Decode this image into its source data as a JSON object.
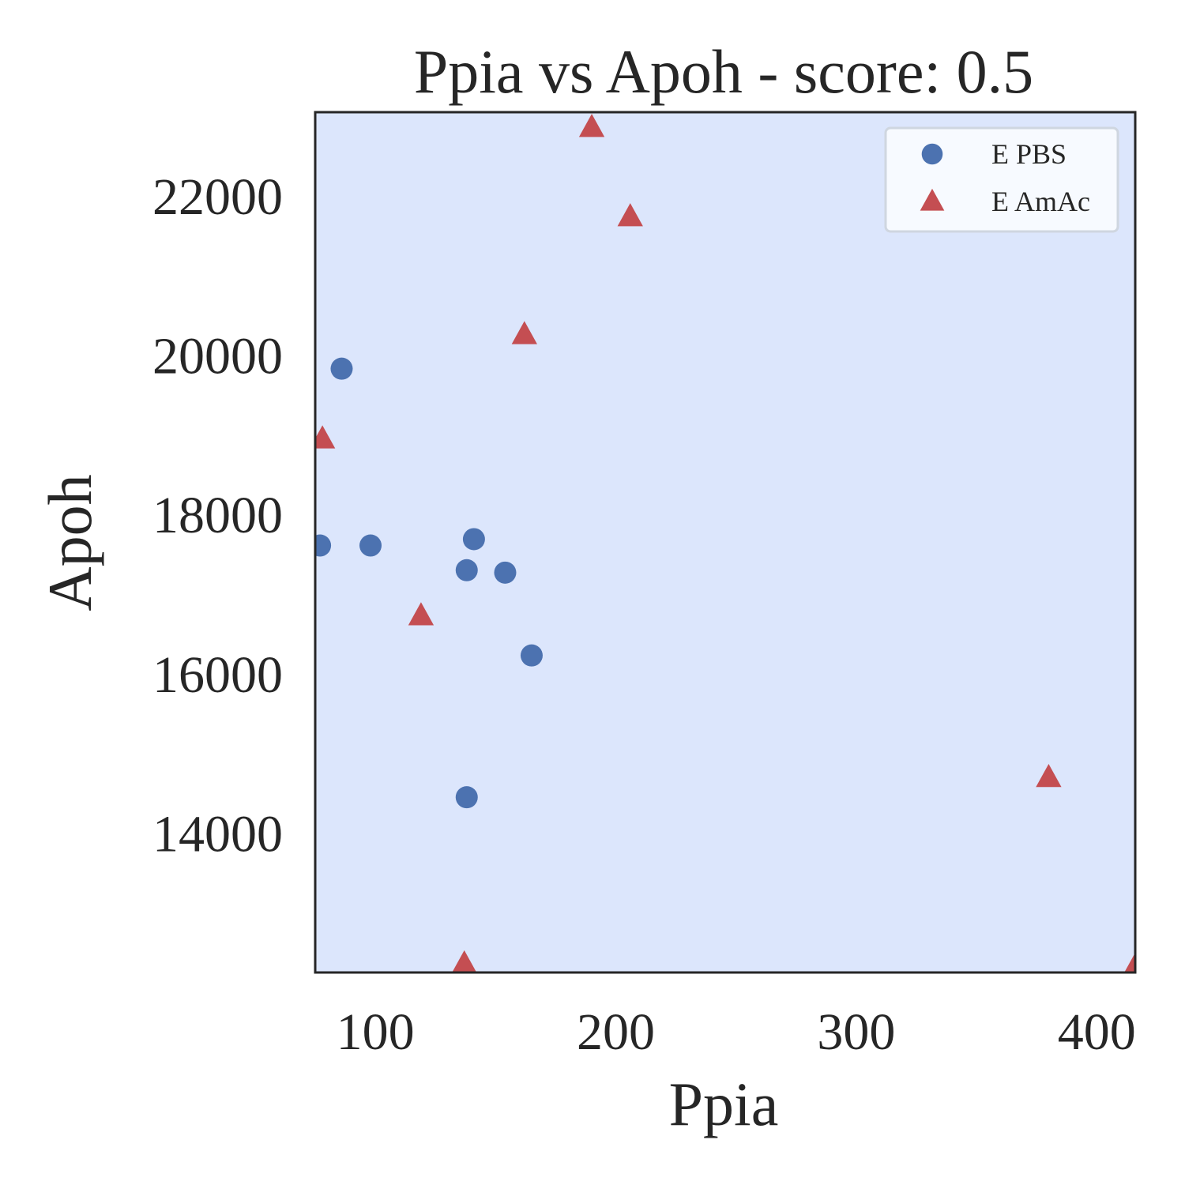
{
  "chart_data": {
    "type": "scatter",
    "title": "Ppia vs Apoh - score: 0.5",
    "xlabel": "Ppia",
    "ylabel": "Apoh",
    "xlim": [
      75,
      416
    ],
    "ylim": [
      12250,
      23050
    ],
    "xticks": [
      100,
      200,
      300,
      400
    ],
    "yticks": [
      14000,
      16000,
      18000,
      20000,
      22000
    ],
    "grid": false,
    "legend_position": "top-right",
    "background_color": "#dce6fc",
    "series": [
      {
        "name": "E PBS",
        "marker": "circle",
        "color": "#4c72b0",
        "points": [
          [
            77,
            17610
          ],
          [
            86,
            19830
          ],
          [
            98,
            17610
          ],
          [
            138,
            17300
          ],
          [
            141,
            17690
          ],
          [
            154,
            17270
          ],
          [
            165,
            16230
          ],
          [
            138,
            14450
          ]
        ]
      },
      {
        "name": "E AmAc",
        "marker": "triangle",
        "color": "#c44e52",
        "points": [
          [
            78,
            18950
          ],
          [
            190,
            22860
          ],
          [
            206,
            21740
          ],
          [
            162,
            20260
          ],
          [
            119,
            16730
          ],
          [
            137,
            12360
          ],
          [
            380,
            14700
          ],
          [
            416,
            12330
          ]
        ]
      }
    ]
  }
}
